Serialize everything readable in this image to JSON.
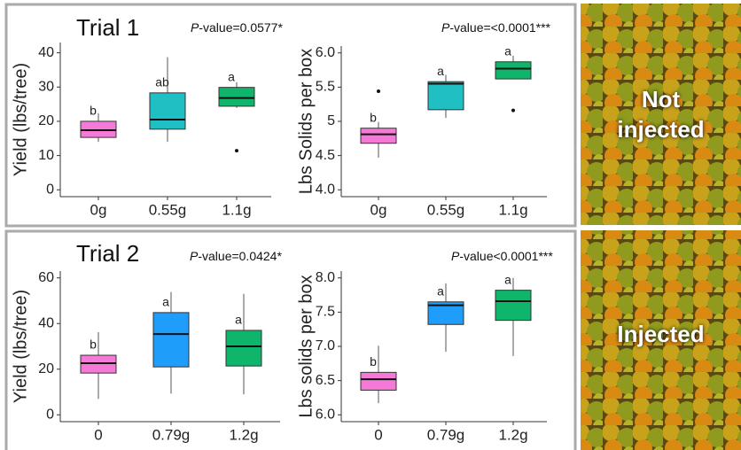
{
  "chart_data": [
    {
      "type": "box",
      "title": "P-value=0.0577*",
      "ylabel": "Yield (lbs/tree)",
      "categories": [
        "0g",
        "0.55g",
        "1.1g"
      ],
      "colors": [
        "#f57ad8",
        "#1fbfc4",
        "#10b56c"
      ],
      "letters": [
        "b",
        "ab",
        "a"
      ],
      "boxes": [
        {
          "min": 14,
          "q1": 15.3,
          "median": 17.4,
          "q3": 20,
          "max": 22.3,
          "outliers": []
        },
        {
          "min": 14,
          "q1": 17.7,
          "median": 20.5,
          "q3": 28.3,
          "max": 38.7,
          "outliers": []
        },
        {
          "min": 23.9,
          "q1": 24.4,
          "median": 26.8,
          "q3": 29.9,
          "max": 31.4,
          "outliers": [
            11.4
          ]
        }
      ],
      "ylim": [
        -2,
        43
      ],
      "yticks": [
        0,
        10,
        20,
        30,
        40
      ]
    },
    {
      "type": "box",
      "title": "P-value=<0.0001***",
      "ylabel": "Lbs Solids per box",
      "categories": [
        "0g",
        "0.55g",
        "1.1g"
      ],
      "colors": [
        "#f57ad8",
        "#1fbfc4",
        "#10b56c"
      ],
      "letters": [
        "b",
        "a",
        "a"
      ],
      "boxes": [
        {
          "min": 4.47,
          "q1": 4.68,
          "median": 4.81,
          "q3": 4.9,
          "max": 4.99,
          "outliers": [
            5.44
          ]
        },
        {
          "min": 5.05,
          "q1": 5.17,
          "median": 5.55,
          "q3": 5.58,
          "max": 5.68,
          "outliers": []
        },
        {
          "min": 5.62,
          "q1": 5.62,
          "median": 5.77,
          "q3": 5.87,
          "max": 5.96,
          "outliers": [
            5.16
          ]
        }
      ],
      "ylim": [
        3.9,
        6.1
      ],
      "yticks": [
        {
          "value": 4,
          "label": "4.0"
        },
        4.5,
        5,
        5.5,
        {
          "value": 6,
          "label": "6.0"
        }
      ]
    },
    {
      "type": "box",
      "title": "P-value=0.0424*",
      "ylabel": "Yield (lbs/tree)",
      "categories": [
        "0",
        "0.79g",
        "1.2g"
      ],
      "colors": [
        "#f57ad8",
        "#1e9dfb",
        "#10b56c"
      ],
      "letters": [
        "b",
        "a",
        "a"
      ],
      "boxes": [
        {
          "min": 7,
          "q1": 18.3,
          "median": 22.6,
          "q3": 26.1,
          "max": 36.2,
          "outliers": []
        },
        {
          "min": 9.3,
          "q1": 21,
          "median": 35.4,
          "q3": 44.8,
          "max": 53.8,
          "outliers": []
        },
        {
          "min": 9,
          "q1": 21.4,
          "median": 30,
          "q3": 37,
          "max": 53,
          "outliers": []
        }
      ],
      "ylim": [
        -3,
        63
      ],
      "yticks": [
        0,
        20,
        40,
        60
      ]
    },
    {
      "type": "box",
      "title": "P-value<0.0001***",
      "ylabel": "Lbs solids per box",
      "categories": [
        "0",
        "0.79g",
        "1.2g"
      ],
      "colors": [
        "#f57ad8",
        "#1e9dfb",
        "#10b56c"
      ],
      "letters": [
        "b",
        "a",
        "a"
      ],
      "boxes": [
        {
          "min": 6.17,
          "q1": 6.36,
          "median": 6.52,
          "q3": 6.62,
          "max": 7.01,
          "outliers": []
        },
        {
          "min": 6.92,
          "q1": 7.32,
          "median": 7.6,
          "q3": 7.65,
          "max": 7.92,
          "outliers": []
        },
        {
          "min": 6.86,
          "q1": 7.38,
          "median": 7.66,
          "q3": 7.82,
          "max": 8,
          "outliers": []
        }
      ],
      "ylim": [
        5.9,
        8.1
      ],
      "yticks": [
        {
          "value": 6,
          "label": "6.0"
        },
        6.5,
        {
          "value": 7,
          "label": "7.0"
        },
        7.5,
        {
          "value": 8,
          "label": "8.0"
        }
      ]
    }
  ],
  "trials": [
    "Trial 1",
    "Trial 2"
  ],
  "photo_labels": [
    "Not injected",
    "Injected"
  ]
}
